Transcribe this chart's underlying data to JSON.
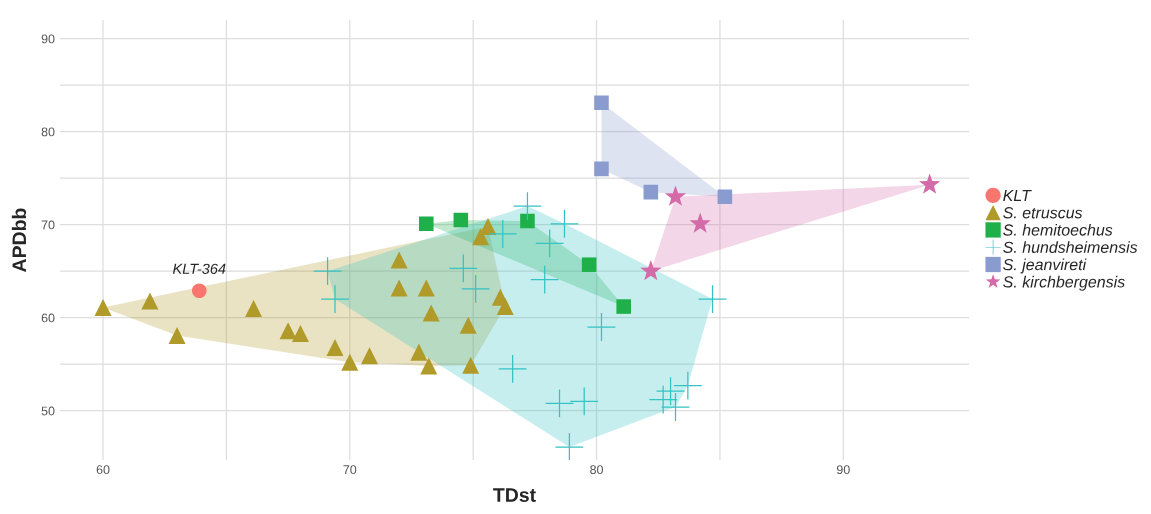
{
  "chart_data": {
    "type": "scatter",
    "xlabel": "TDst",
    "ylabel": "APDbb",
    "xlim": [
      58.25,
      95.1
    ],
    "ylim": [
      44.7,
      92
    ],
    "xticks": [
      60,
      {
        "value": 65,
        "label": null
      },
      70,
      {
        "value": 75,
        "label": null
      },
      80,
      {
        "value": 85,
        "label": null
      },
      90
    ],
    "yticks": [
      50,
      {
        "value": 55,
        "label": null
      },
      60,
      {
        "value": 65,
        "label": null
      },
      70,
      {
        "value": 75,
        "label": null
      },
      80,
      {
        "value": 85,
        "label": null
      },
      90
    ],
    "grid": true,
    "legend": "right",
    "annotations": [
      {
        "text": "KLT-364",
        "x": 63.9,
        "y": 62.9
      }
    ],
    "series": [
      {
        "name": "KLT",
        "color": "#f8766d",
        "marker": "circle",
        "x": [
          63.9
        ],
        "values": [
          62.9
        ]
      },
      {
        "name": "S. etruscus",
        "color": "#b09a2a",
        "marker": "triangle",
        "x": [
          60.0,
          61.9,
          63.0,
          66.1,
          67.5,
          68.0,
          69.4,
          70.0,
          70.8,
          72.8,
          73.2,
          72.0,
          72.0,
          73.1,
          73.3,
          74.8,
          74.9,
          75.6,
          75.3,
          76.1,
          76.3
        ],
        "values": [
          61.1,
          61.8,
          58.1,
          61.0,
          58.6,
          58.3,
          56.8,
          55.2,
          55.9,
          56.3,
          54.8,
          66.2,
          63.2,
          63.2,
          60.5,
          59.2,
          54.9,
          69.8,
          68.7,
          62.2,
          61.2
        ]
      },
      {
        "name": "S. hemitoechus",
        "color": "#1fb04a",
        "marker": "square",
        "x": [
          73.1,
          74.5,
          77.2,
          79.7,
          81.1
        ],
        "values": [
          70.1,
          70.5,
          70.4,
          65.7,
          61.2
        ]
      },
      {
        "name": "S. hundsheimensis",
        "color": "#35c2c2",
        "marker": "cross",
        "x": [
          77.2,
          78.7,
          76.2,
          78.1,
          74.6,
          75.1,
          77.9,
          69.1,
          69.4,
          80.2,
          76.6,
          78.5,
          79.5,
          78.9,
          84.7,
          83.7,
          83.0,
          82.7,
          83.2
        ],
        "values": [
          72.0,
          70.1,
          69.0,
          68.0,
          65.3,
          63.1,
          64.1,
          65.0,
          62.0,
          59.0,
          54.5,
          50.8,
          51.0,
          46.1,
          62.0,
          52.7,
          52.1,
          51.2,
          50.4
        ]
      },
      {
        "name": "S. jeanvireti",
        "color": "#8a9bd0",
        "marker": "square",
        "x": [
          80.2,
          80.2,
          82.2,
          85.2
        ],
        "values": [
          83.1,
          76.0,
          73.5,
          73.0
        ]
      },
      {
        "name": "S. kirchbergensis",
        "color": "#d46aa8",
        "marker": "star",
        "x": [
          83.2,
          84.2,
          82.2,
          93.5
        ],
        "values": [
          73.0,
          70.1,
          65.0,
          74.3
        ]
      }
    ]
  }
}
